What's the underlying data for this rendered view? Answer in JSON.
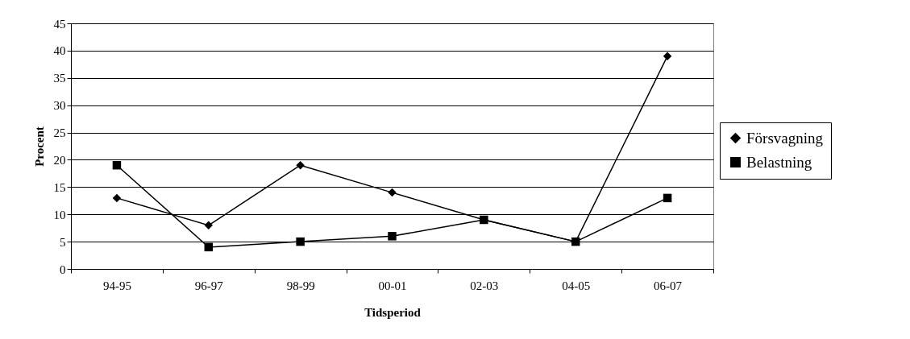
{
  "chart_data": {
    "type": "line",
    "xlabel": "Tidsperiod",
    "ylabel": "Procent",
    "categories": [
      "94-95",
      "96-97",
      "98-99",
      "00-01",
      "02-03",
      "04-05",
      "06-07"
    ],
    "series": [
      {
        "name": "Försvagning",
        "color": "#000000",
        "marker": "diamond",
        "values": [
          13,
          8,
          19,
          14,
          9,
          5,
          39
        ]
      },
      {
        "name": "Belastning",
        "color": "#000000",
        "marker": "square",
        "values": [
          19,
          4,
          5,
          6,
          9,
          5,
          13
        ]
      }
    ],
    "ylim": [
      0,
      45
    ],
    "yticks": [
      0,
      5,
      10,
      15,
      20,
      25,
      30,
      35,
      40,
      45
    ],
    "grid": "y",
    "legend": "right"
  }
}
